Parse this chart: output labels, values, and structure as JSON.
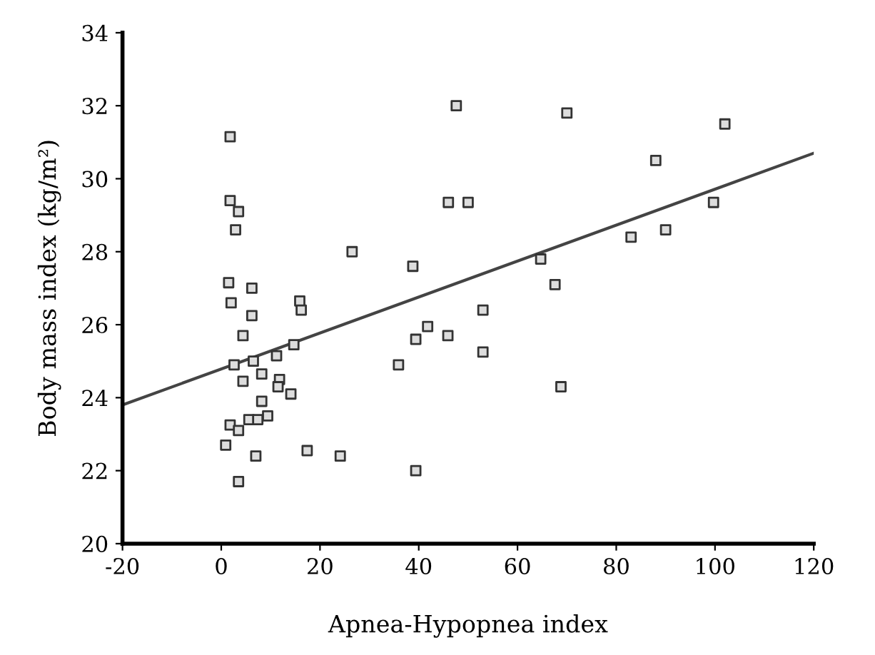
{
  "chart_data": {
    "type": "scatter",
    "xlabel": "Apnea-Hypopnea index",
    "ylabel": "Body mass index (kg/m²)",
    "xlim": [
      -20,
      120
    ],
    "xticks": [
      -20,
      0,
      20,
      40,
      60,
      80,
      100,
      120
    ],
    "ylim": [
      20,
      34
    ],
    "yticks": [
      20,
      22,
      24,
      26,
      28,
      30,
      32,
      34
    ],
    "grid": false,
    "legend": false,
    "marker": "square",
    "series": [
      {
        "color": "#333333",
        "x": [
          1.8,
          47.6,
          70,
          102,
          88,
          46,
          50,
          1.8,
          3.5,
          2.9,
          26.5,
          38.8,
          99.7,
          83,
          90,
          64.7,
          67.6,
          53,
          45.9,
          53,
          68.8,
          1.5,
          6.2,
          2,
          6.2,
          15.9,
          16.2,
          4.4,
          2.6,
          6.5,
          11.2,
          14.7,
          4.4,
          8.2,
          11.8,
          11.5,
          14.1,
          8.2,
          5.6,
          7.4,
          9.4,
          1.8,
          3.5,
          0.9,
          7,
          17.4,
          24.1,
          3.5,
          39.4,
          35.9,
          39.4,
          41.8
        ],
        "values": [
          31.15,
          32.0,
          31.8,
          31.5,
          30.5,
          29.35,
          29.35,
          29.4,
          29.1,
          28.6,
          28.0,
          27.6,
          29.35,
          28.4,
          28.6,
          27.8,
          27.1,
          26.4,
          25.7,
          25.25,
          24.3,
          27.15,
          27.0,
          26.6,
          26.25,
          26.65,
          26.4,
          25.7,
          24.9,
          25.0,
          25.15,
          25.45,
          24.45,
          24.65,
          24.5,
          24.3,
          24.1,
          23.9,
          23.4,
          23.4,
          23.5,
          23.25,
          23.1,
          22.7,
          22.4,
          22.55,
          22.4,
          21.7,
          22.0,
          24.9,
          25.6,
          25.95
        ]
      },
      {
        "type": "line",
        "color": "#444444",
        "marker": "none",
        "line_style": "solid",
        "x": [
          -20,
          120
        ],
        "values": [
          23.8,
          30.7
        ]
      }
    ]
  }
}
